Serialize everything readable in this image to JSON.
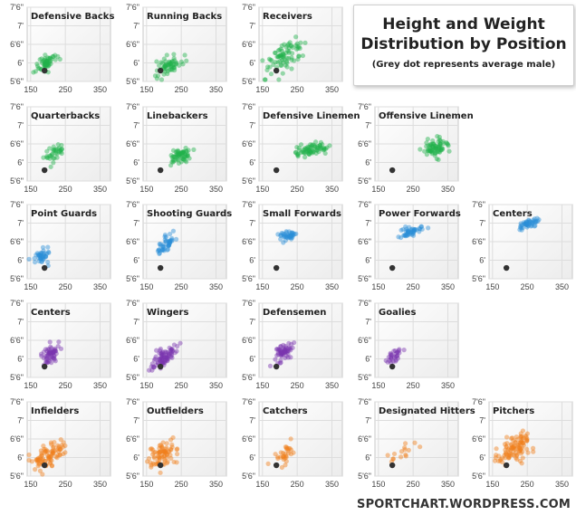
{
  "header": {
    "title_line1": "Height and Weight",
    "title_line2": "Distribution by Position",
    "subtitle": "(Grey dot represents average male)"
  },
  "credit": "SPORTCHART.WORDPRESS.COM",
  "colors": {
    "green": "#22b14c",
    "blue": "#2a8fd6",
    "purple": "#7a35b0",
    "orange": "#f07f1a",
    "average_dot": "#333333",
    "panel_grid": "#dddddd"
  },
  "chart_data": {
    "type": "scatter",
    "x_ticks": [
      "150",
      "250",
      "350"
    ],
    "y_ticks": [
      "7'6\"",
      "7'",
      "6'6\"",
      "6'",
      "5'6\""
    ],
    "xlim": [
      140,
      380
    ],
    "ylim": [
      66,
      90
    ],
    "average_male": {
      "weight": 190,
      "height": 69.5
    },
    "panels": [
      {
        "name": "Defensive Backs",
        "row": 0,
        "col": 0,
        "color": "green",
        "center": [
          195,
          72
        ],
        "spread": [
          14,
          1.3
        ],
        "points": 60,
        "slope": 0.05
      },
      {
        "name": "Running Backs",
        "row": 0,
        "col": 1,
        "color": "green",
        "center": [
          215,
          71.5
        ],
        "spread": [
          18,
          1.5
        ],
        "points": 60,
        "slope": 0.05
      },
      {
        "name": "Receivers",
        "row": 0,
        "col": 2,
        "color": "green",
        "center": [
          215,
          74
        ],
        "spread": [
          30,
          2.5
        ],
        "points": 80,
        "slope": 0.07
      },
      {
        "name": "Quarterbacks",
        "row": 1,
        "col": 0,
        "color": "green",
        "center": [
          220,
          75
        ],
        "spread": [
          14,
          1.2
        ],
        "points": 35,
        "slope": 0.06
      },
      {
        "name": "Linebackers",
        "row": 1,
        "col": 1,
        "color": "green",
        "center": [
          245,
          74
        ],
        "spread": [
          15,
          1.2
        ],
        "points": 60,
        "slope": 0.04
      },
      {
        "name": "Defensive Linemen",
        "row": 1,
        "col": 2,
        "color": "green",
        "center": [
          290,
          76
        ],
        "spread": [
          25,
          1.0
        ],
        "points": 70,
        "slope": 0.02
      },
      {
        "name": "Offensive Linemen",
        "row": 1,
        "col": 3,
        "color": "green",
        "center": [
          310,
          77
        ],
        "spread": [
          18,
          1.3
        ],
        "points": 70,
        "slope": 0.02
      },
      {
        "name": "Point Guards",
        "row": 2,
        "col": 0,
        "color": "blue",
        "center": [
          183,
          73.5
        ],
        "spread": [
          12,
          1.3
        ],
        "points": 40,
        "slope": 0.05
      },
      {
        "name": "Shooting Guards",
        "row": 2,
        "col": 1,
        "color": "blue",
        "center": [
          205,
          77
        ],
        "spread": [
          12,
          1.3
        ],
        "points": 45,
        "slope": 0.05
      },
      {
        "name": "Small Forwards",
        "row": 2,
        "col": 2,
        "color": "blue",
        "center": [
          220,
          80
        ],
        "spread": [
          12,
          0.9
        ],
        "points": 40,
        "slope": 0.03
      },
      {
        "name": "Power Forwards",
        "row": 2,
        "col": 3,
        "color": "blue",
        "center": [
          245,
          81.5
        ],
        "spread": [
          15,
          0.8
        ],
        "points": 45,
        "slope": 0.02
      },
      {
        "name": "Centers",
        "row": 2,
        "col": 4,
        "color": "blue",
        "center": [
          255,
          84
        ],
        "spread": [
          18,
          0.8
        ],
        "points": 45,
        "slope": 0.02
      },
      {
        "name": "Centers",
        "row": 3,
        "col": 0,
        "color": "purple",
        "center": [
          205,
          73
        ],
        "spread": [
          14,
          1.5
        ],
        "points": 60,
        "slope": 0.07
      },
      {
        "name": "Wingers",
        "row": 3,
        "col": 1,
        "color": "purple",
        "center": [
          200,
          72.5
        ],
        "spread": [
          16,
          1.5
        ],
        "points": 80,
        "slope": 0.07
      },
      {
        "name": "Defensemen",
        "row": 3,
        "col": 2,
        "color": "purple",
        "center": [
          210,
          74
        ],
        "spread": [
          14,
          1.5
        ],
        "points": 60,
        "slope": 0.07
      },
      {
        "name": "Goalies",
        "row": 3,
        "col": 3,
        "color": "purple",
        "center": [
          195,
          73
        ],
        "spread": [
          10,
          1.2
        ],
        "points": 30,
        "slope": 0.06
      },
      {
        "name": "Infielders",
        "row": 4,
        "col": 0,
        "color": "orange",
        "center": [
          200,
          72.5
        ],
        "spread": [
          25,
          2.0
        ],
        "points": 90,
        "slope": 0.06
      },
      {
        "name": "Outfielders",
        "row": 4,
        "col": 1,
        "color": "orange",
        "center": [
          200,
          73
        ],
        "spread": [
          22,
          2.0
        ],
        "points": 80,
        "slope": 0.06
      },
      {
        "name": "Catchers",
        "row": 4,
        "col": 2,
        "color": "orange",
        "center": [
          215,
          72.5
        ],
        "spread": [
          18,
          1.5
        ],
        "points": 30,
        "slope": 0.05
      },
      {
        "name": "Designated Hitters",
        "row": 4,
        "col": 3,
        "color": "orange",
        "center": [
          225,
          73.5
        ],
        "spread": [
          22,
          1.8
        ],
        "points": 15,
        "slope": 0.05
      },
      {
        "name": "Pitchers",
        "row": 4,
        "col": 4,
        "color": "orange",
        "center": [
          215,
          75
        ],
        "spread": [
          25,
          2.0
        ],
        "points": 100,
        "slope": 0.05
      }
    ]
  }
}
